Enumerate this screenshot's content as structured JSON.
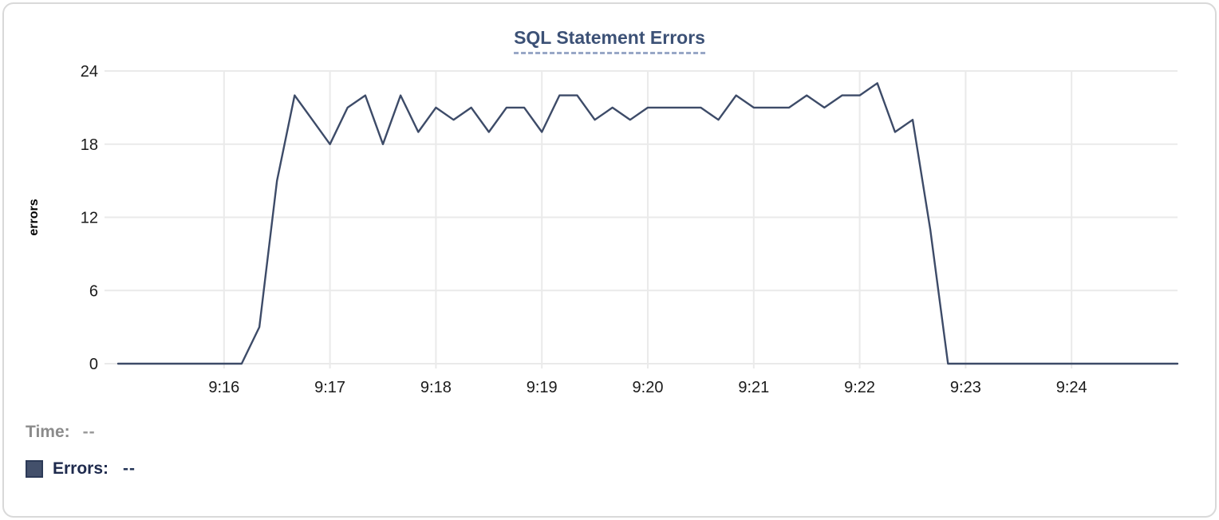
{
  "card": {
    "background": "#ffffff",
    "border_color": "#d9d9d9"
  },
  "colors": {
    "line": "#3d4b68",
    "title_text": "#3c5176",
    "title_underline": "#98a7c6",
    "grid": "#eaeaea",
    "tick_label": "#1b1b1b",
    "axis_title": "#000000",
    "legend_time_text": "#8b8b8b",
    "legend_errors_text": "#1e2a4d",
    "legend_swatch_fill": "#43506b",
    "legend_swatch_border": "#2c3a57"
  },
  "tooltip_readout": {
    "time_label": "Time:",
    "time_value": "--",
    "errors_label": "Errors:",
    "errors_value": "--"
  },
  "chart_data": {
    "type": "line",
    "title": "SQL Statement Errors",
    "xlabel": "",
    "ylabel": "errors",
    "ylim": [
      0,
      24
    ],
    "yticks": [
      0,
      6,
      12,
      18,
      24
    ],
    "x_domain": [
      "9:15:00",
      "9:25:00"
    ],
    "x_tick_labels": [
      "9:16",
      "9:17",
      "9:18",
      "9:19",
      "9:20",
      "9:21",
      "9:22",
      "9:23",
      "9:24"
    ],
    "grid": true,
    "legend_position": "bottom-left",
    "series": [
      {
        "name": "Errors",
        "color": "#3d4b68",
        "x": [
          "9:15:00",
          "9:15:10",
          "9:15:20",
          "9:15:30",
          "9:15:40",
          "9:15:50",
          "9:16:00",
          "9:16:10",
          "9:16:20",
          "9:16:30",
          "9:16:40",
          "9:16:50",
          "9:17:00",
          "9:17:10",
          "9:17:20",
          "9:17:30",
          "9:17:40",
          "9:17:50",
          "9:18:00",
          "9:18:10",
          "9:18:20",
          "9:18:30",
          "9:18:40",
          "9:18:50",
          "9:19:00",
          "9:19:10",
          "9:19:20",
          "9:19:30",
          "9:19:40",
          "9:19:50",
          "9:20:00",
          "9:20:10",
          "9:20:20",
          "9:20:30",
          "9:20:40",
          "9:20:50",
          "9:21:00",
          "9:21:10",
          "9:21:20",
          "9:21:30",
          "9:21:40",
          "9:21:50",
          "9:22:00",
          "9:22:10",
          "9:22:20",
          "9:22:30",
          "9:22:40",
          "9:22:50",
          "9:23:00",
          "9:23:10",
          "9:23:20",
          "9:23:30",
          "9:23:40",
          "9:23:50",
          "9:24:00",
          "9:24:10",
          "9:24:20",
          "9:24:30",
          "9:24:40",
          "9:24:50",
          "9:25:00"
        ],
        "values": [
          0,
          0,
          0,
          0,
          0,
          0,
          0,
          0,
          3,
          15,
          22,
          20,
          18,
          21,
          22,
          18,
          22,
          19,
          21,
          20,
          21,
          19,
          21,
          21,
          19,
          22,
          22,
          20,
          21,
          20,
          21,
          21,
          21,
          21,
          20,
          22,
          21,
          21,
          21,
          22,
          21,
          22,
          22,
          23,
          19,
          20,
          11,
          0,
          0,
          0,
          0,
          0,
          0,
          0,
          0,
          0,
          0,
          0,
          0,
          0,
          0
        ]
      }
    ]
  }
}
